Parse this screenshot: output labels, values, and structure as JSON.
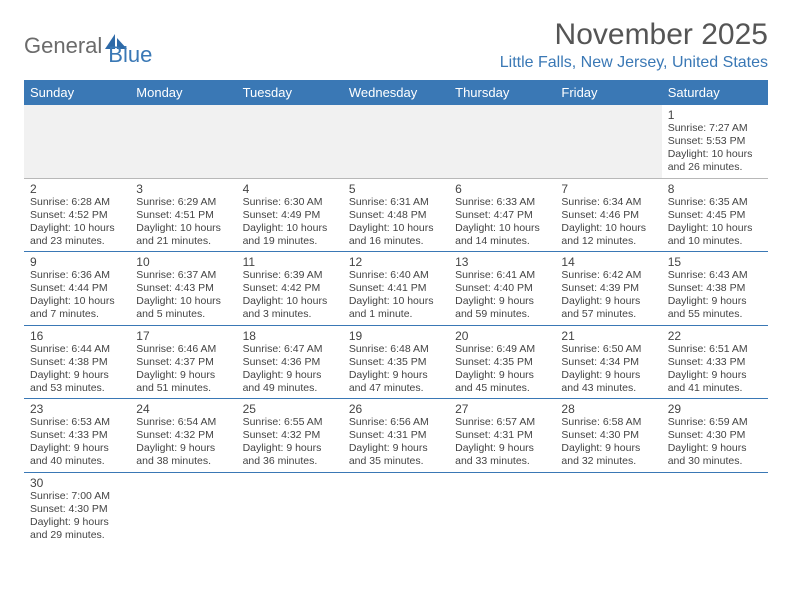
{
  "logo": {
    "text1": "General",
    "text2": "Blue"
  },
  "title": "November 2025",
  "location": "Little Falls, New Jersey, United States",
  "colors": {
    "header_bg": "#3a78b5",
    "header_text": "#ffffff",
    "accent": "#3a78b5",
    "body_text": "#444444",
    "muted_bg": "#f1f1f1"
  },
  "day_headers": [
    "Sunday",
    "Monday",
    "Tuesday",
    "Wednesday",
    "Thursday",
    "Friday",
    "Saturday"
  ],
  "weeks": [
    [
      null,
      null,
      null,
      null,
      null,
      null,
      {
        "n": "1",
        "sr": "7:27 AM",
        "ss": "5:53 PM",
        "d": "10 hours and 26 minutes."
      }
    ],
    [
      {
        "n": "2",
        "sr": "6:28 AM",
        "ss": "4:52 PM",
        "d": "10 hours and 23 minutes."
      },
      {
        "n": "3",
        "sr": "6:29 AM",
        "ss": "4:51 PM",
        "d": "10 hours and 21 minutes."
      },
      {
        "n": "4",
        "sr": "6:30 AM",
        "ss": "4:49 PM",
        "d": "10 hours and 19 minutes."
      },
      {
        "n": "5",
        "sr": "6:31 AM",
        "ss": "4:48 PM",
        "d": "10 hours and 16 minutes."
      },
      {
        "n": "6",
        "sr": "6:33 AM",
        "ss": "4:47 PM",
        "d": "10 hours and 14 minutes."
      },
      {
        "n": "7",
        "sr": "6:34 AM",
        "ss": "4:46 PM",
        "d": "10 hours and 12 minutes."
      },
      {
        "n": "8",
        "sr": "6:35 AM",
        "ss": "4:45 PM",
        "d": "10 hours and 10 minutes."
      }
    ],
    [
      {
        "n": "9",
        "sr": "6:36 AM",
        "ss": "4:44 PM",
        "d": "10 hours and 7 minutes."
      },
      {
        "n": "10",
        "sr": "6:37 AM",
        "ss": "4:43 PM",
        "d": "10 hours and 5 minutes."
      },
      {
        "n": "11",
        "sr": "6:39 AM",
        "ss": "4:42 PM",
        "d": "10 hours and 3 minutes."
      },
      {
        "n": "12",
        "sr": "6:40 AM",
        "ss": "4:41 PM",
        "d": "10 hours and 1 minute."
      },
      {
        "n": "13",
        "sr": "6:41 AM",
        "ss": "4:40 PM",
        "d": "9 hours and 59 minutes."
      },
      {
        "n": "14",
        "sr": "6:42 AM",
        "ss": "4:39 PM",
        "d": "9 hours and 57 minutes."
      },
      {
        "n": "15",
        "sr": "6:43 AM",
        "ss": "4:38 PM",
        "d": "9 hours and 55 minutes."
      }
    ],
    [
      {
        "n": "16",
        "sr": "6:44 AM",
        "ss": "4:38 PM",
        "d": "9 hours and 53 minutes."
      },
      {
        "n": "17",
        "sr": "6:46 AM",
        "ss": "4:37 PM",
        "d": "9 hours and 51 minutes."
      },
      {
        "n": "18",
        "sr": "6:47 AM",
        "ss": "4:36 PM",
        "d": "9 hours and 49 minutes."
      },
      {
        "n": "19",
        "sr": "6:48 AM",
        "ss": "4:35 PM",
        "d": "9 hours and 47 minutes."
      },
      {
        "n": "20",
        "sr": "6:49 AM",
        "ss": "4:35 PM",
        "d": "9 hours and 45 minutes."
      },
      {
        "n": "21",
        "sr": "6:50 AM",
        "ss": "4:34 PM",
        "d": "9 hours and 43 minutes."
      },
      {
        "n": "22",
        "sr": "6:51 AM",
        "ss": "4:33 PM",
        "d": "9 hours and 41 minutes."
      }
    ],
    [
      {
        "n": "23",
        "sr": "6:53 AM",
        "ss": "4:33 PM",
        "d": "9 hours and 40 minutes."
      },
      {
        "n": "24",
        "sr": "6:54 AM",
        "ss": "4:32 PM",
        "d": "9 hours and 38 minutes."
      },
      {
        "n": "25",
        "sr": "6:55 AM",
        "ss": "4:32 PM",
        "d": "9 hours and 36 minutes."
      },
      {
        "n": "26",
        "sr": "6:56 AM",
        "ss": "4:31 PM",
        "d": "9 hours and 35 minutes."
      },
      {
        "n": "27",
        "sr": "6:57 AM",
        "ss": "4:31 PM",
        "d": "9 hours and 33 minutes."
      },
      {
        "n": "28",
        "sr": "6:58 AM",
        "ss": "4:30 PM",
        "d": "9 hours and 32 minutes."
      },
      {
        "n": "29",
        "sr": "6:59 AM",
        "ss": "4:30 PM",
        "d": "9 hours and 30 minutes."
      }
    ],
    [
      {
        "n": "30",
        "sr": "7:00 AM",
        "ss": "4:30 PM",
        "d": "9 hours and 29 minutes."
      },
      null,
      null,
      null,
      null,
      null,
      null
    ]
  ],
  "labels": {
    "sunrise": "Sunrise:",
    "sunset": "Sunset:",
    "daylight": "Daylight:"
  }
}
